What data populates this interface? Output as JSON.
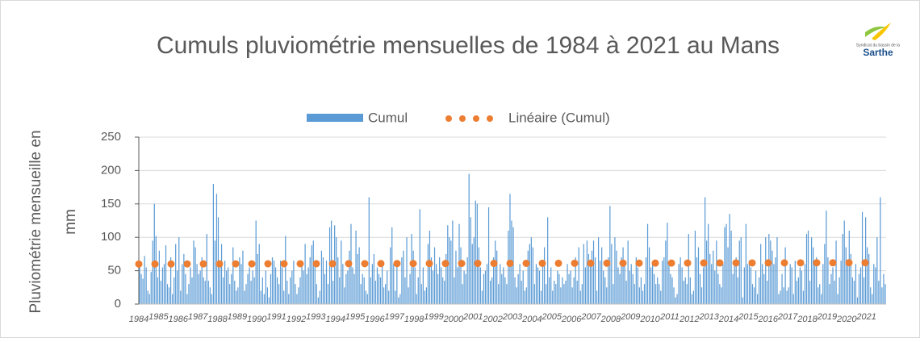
{
  "chart_data": {
    "type": "bar",
    "title": "Cumuls pluviométrie mensuelles de 1984 à 2021 au Mans",
    "ylabel": [
      "Pluviométrie mensueille en",
      "mm"
    ],
    "logo": {
      "line1": "Syndicat du bassin de la",
      "name": "Sarthe"
    },
    "categories": [
      "1984",
      "1985",
      "1986",
      "1987",
      "1988",
      "1989",
      "1990",
      "1991",
      "1992",
      "1993",
      "1994",
      "1995",
      "1996",
      "1997",
      "1998",
      "1999",
      "2000",
      "2001",
      "2002",
      "2003",
      "2004",
      "2005",
      "2006",
      "2007",
      "2008",
      "2009",
      "2010",
      "2011",
      "2012",
      "2013",
      "2014",
      "2015",
      "2016",
      "2017",
      "2018",
      "2019",
      "2020",
      "2021"
    ],
    "series": [
      {
        "name": "Cumul",
        "color": "#5b9bd5",
        "values": [
          [
            62,
            45,
            38,
            72,
            55,
            20,
            15,
            48,
            95,
            150,
            102,
            40
          ],
          [
            80,
            35,
            55,
            60,
            88,
            30,
            25,
            70,
            15,
            40,
            90,
            50
          ],
          [
            100,
            20,
            60,
            75,
            45,
            15,
            30,
            55,
            40,
            95,
            85,
            60
          ],
          [
            45,
            50,
            70,
            40,
            35,
            105,
            35,
            25,
            15,
            180,
            95,
            165
          ],
          [
            130,
            60,
            90,
            40,
            65,
            50,
            55,
            30,
            45,
            85,
            35,
            20
          ],
          [
            25,
            70,
            60,
            80,
            20,
            30,
            45,
            55,
            35,
            50,
            40,
            125
          ],
          [
            75,
            90,
            20,
            40,
            15,
            50,
            25,
            10,
            45,
            70,
            65,
            55
          ],
          [
            40,
            30,
            65,
            55,
            20,
            102,
            35,
            15,
            40,
            50,
            65,
            30
          ],
          [
            15,
            25,
            40,
            60,
            50,
            90,
            45,
            55,
            70,
            88,
            95,
            60
          ],
          [
            30,
            10,
            20,
            80,
            70,
            45,
            65,
            30,
            115,
            125,
            35,
            118
          ],
          [
            100,
            70,
            40,
            95,
            60,
            25,
            45,
            50,
            80,
            120,
            55,
            45
          ],
          [
            110,
            75,
            85,
            30,
            45,
            40,
            20,
            15,
            160,
            40,
            60,
            75
          ],
          [
            35,
            55,
            45,
            40,
            60,
            25,
            30,
            50,
            20,
            85,
            115,
            60
          ],
          [
            20,
            65,
            10,
            15,
            70,
            80,
            40,
            100,
            25,
            45,
            105,
            80
          ],
          [
            55,
            15,
            40,
            142,
            30,
            55,
            20,
            25,
            90,
            110,
            70,
            50
          ],
          [
            85,
            60,
            45,
            70,
            55,
            40,
            35,
            75,
            118,
            100,
            95,
            125
          ],
          [
            40,
            80,
            55,
            120,
            85,
            30,
            50,
            45,
            70,
            195,
            130,
            90
          ],
          [
            100,
            155,
            150,
            85,
            55,
            20,
            45,
            50,
            60,
            145,
            35,
            40
          ],
          [
            70,
            95,
            80,
            30,
            60,
            45,
            55,
            40,
            30,
            110,
            165,
            125
          ],
          [
            115,
            40,
            25,
            45,
            60,
            35,
            50,
            20,
            25,
            80,
            90,
            100
          ],
          [
            85,
            30,
            60,
            55,
            50,
            20,
            65,
            85,
            30,
            130,
            40,
            55
          ],
          [
            20,
            35,
            30,
            50,
            45,
            25,
            40,
            30,
            35,
            60,
            45,
            50
          ],
          [
            25,
            40,
            70,
            35,
            85,
            20,
            30,
            90,
            55,
            95,
            75,
            60
          ],
          [
            80,
            95,
            70,
            20,
            100,
            65,
            85,
            50,
            40,
            25,
            70,
            147
          ],
          [
            90,
            30,
            100,
            80,
            55,
            45,
            70,
            85,
            60,
            35,
            95,
            50
          ],
          [
            60,
            45,
            30,
            70,
            55,
            25,
            40,
            20,
            30,
            70,
            120,
            85
          ],
          [
            55,
            60,
            45,
            30,
            40,
            30,
            20,
            65,
            70,
            95,
            122,
            60
          ],
          [
            45,
            40,
            25,
            10,
            15,
            60,
            70,
            55,
            35,
            40,
            30,
            105
          ],
          [
            40,
            15,
            20,
            110,
            70,
            85,
            45,
            25,
            55,
            160,
            95,
            120
          ],
          [
            75,
            60,
            80,
            50,
            95,
            45,
            30,
            25,
            60,
            115,
            120,
            85
          ],
          [
            135,
            110,
            45,
            60,
            70,
            40,
            95,
            100,
            10,
            55,
            120,
            60
          ],
          [
            65,
            55,
            30,
            25,
            50,
            15,
            40,
            90,
            60,
            45,
            100,
            35
          ],
          [
            105,
            95,
            80,
            60,
            70,
            100,
            15,
            20,
            45,
            25,
            85,
            20
          ],
          [
            25,
            60,
            55,
            15,
            65,
            35,
            40,
            55,
            50,
            20,
            60,
            105
          ],
          [
            110,
            35,
            100,
            85,
            60,
            70,
            25,
            30,
            15,
            60,
            90,
            140
          ],
          [
            70,
            30,
            45,
            55,
            35,
            95,
            15,
            40,
            65,
            105,
            125,
            85
          ],
          [
            60,
            110,
            75,
            40,
            35,
            60,
            10,
            45,
            55,
            138,
            40,
            130
          ],
          [
            85,
            75,
            25,
            15,
            60,
            55,
            100,
            35,
            160,
            25,
            45,
            30
          ]
        ]
      }
    ],
    "trend": {
      "name": "Linéaire (Cumul)",
      "color": "#ed7d31",
      "values": [
        60,
        62
      ]
    },
    "ylim": [
      0,
      250
    ],
    "yticks": [
      0,
      50,
      100,
      150,
      200,
      250
    ],
    "grid": true,
    "legend": "top"
  }
}
